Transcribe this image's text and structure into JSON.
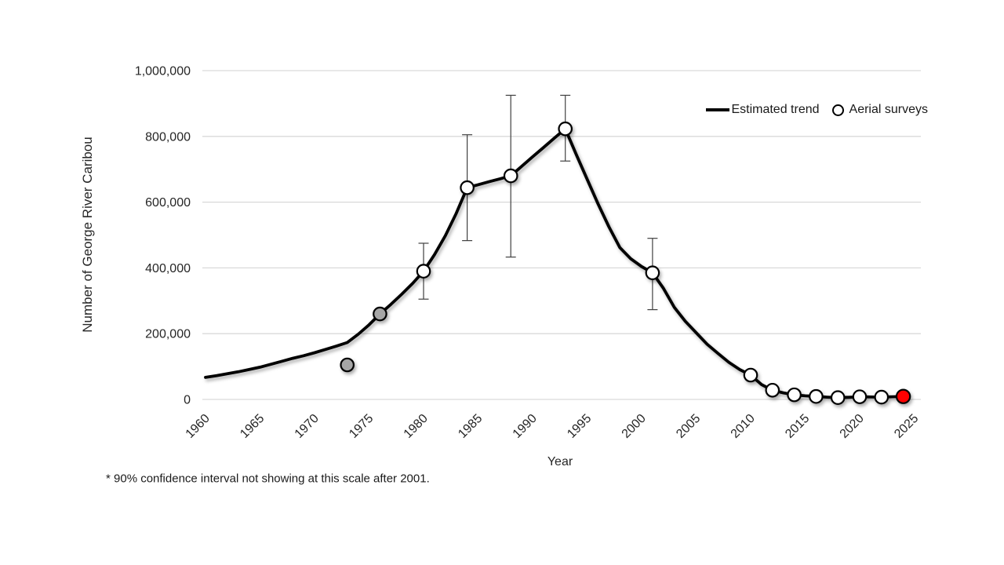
{
  "chart_data": {
    "type": "line",
    "title": "",
    "xlabel": "Year",
    "ylabel": "Number of George River Caribou",
    "xlim": [
      1960,
      2025
    ],
    "ylim": [
      0,
      1000000
    ],
    "grid": "horizontal",
    "x_ticks": [
      1960,
      1965,
      1970,
      1975,
      1980,
      1985,
      1990,
      1995,
      2000,
      2005,
      2010,
      2015,
      2020,
      2025
    ],
    "y_ticks": [
      {
        "value": 0,
        "label": "0"
      },
      {
        "value": 200000,
        "label": "200,000"
      },
      {
        "value": 400000,
        "label": "400,000"
      },
      {
        "value": 600000,
        "label": "600,000"
      },
      {
        "value": 800000,
        "label": "800,000"
      },
      {
        "value": 1000000,
        "label": "1,000,000"
      }
    ],
    "legend": {
      "position": "top-right",
      "entries": [
        {
          "label": "Estimated trend",
          "marker": "line"
        },
        {
          "label": "Aerial surveys",
          "marker": "open-circle"
        }
      ]
    },
    "series": [
      {
        "name": "Estimated trend",
        "type": "line",
        "color": "#000000",
        "x_start": 1960,
        "x_step": 1,
        "values": [
          67000,
          72000,
          78000,
          84000,
          91000,
          98000,
          107000,
          116000,
          125000,
          133000,
          142000,
          152000,
          162000,
          173000,
          198000,
          227000,
          260000,
          289000,
          320000,
          353000,
          390000,
          440000,
          498000,
          566000,
          644000,
          653000,
          662000,
          671000,
          680000,
          709000,
          738000,
          766000,
          795000,
          823000,
          745000,
          670000,
          595000,
          525000,
          462000,
          428000,
          404000,
          385000,
          338000,
          280000,
          238000,
          203000,
          168000,
          140000,
          113000,
          91000,
          74000,
          45000,
          28000,
          20000,
          14000,
          11000,
          9000,
          7000,
          5500,
          6500,
          8000,
          7500,
          7000,
          8000,
          9000
        ]
      },
      {
        "name": "Aerial surveys",
        "type": "scatter",
        "points": [
          {
            "year": 1973,
            "value": 105000,
            "marker": "gray",
            "ci_low": null,
            "ci_high": null
          },
          {
            "year": 1976,
            "value": 260000,
            "marker": "gray",
            "ci_low": null,
            "ci_high": null
          },
          {
            "year": 1980,
            "value": 390000,
            "marker": "open",
            "ci_low": 305000,
            "ci_high": 475000
          },
          {
            "year": 1984,
            "value": 644000,
            "marker": "open",
            "ci_low": 483000,
            "ci_high": 805000
          },
          {
            "year": 1988,
            "value": 680000,
            "marker": "open",
            "ci_low": 433000,
            "ci_high": 925000
          },
          {
            "year": 1993,
            "value": 823000,
            "marker": "open",
            "ci_low": 725000,
            "ci_high": 925000
          },
          {
            "year": 2001,
            "value": 385000,
            "marker": "open",
            "ci_low": 273000,
            "ci_high": 490000
          },
          {
            "year": 2010,
            "value": 74000,
            "marker": "open",
            "ci_low": null,
            "ci_high": null
          },
          {
            "year": 2012,
            "value": 28000,
            "marker": "open",
            "ci_low": null,
            "ci_high": null
          },
          {
            "year": 2014,
            "value": 14000,
            "marker": "open",
            "ci_low": null,
            "ci_high": null
          },
          {
            "year": 2016,
            "value": 9000,
            "marker": "open",
            "ci_low": null,
            "ci_high": null
          },
          {
            "year": 2018,
            "value": 5500,
            "marker": "open",
            "ci_low": null,
            "ci_high": null
          },
          {
            "year": 2020,
            "value": 8000,
            "marker": "open",
            "ci_low": null,
            "ci_high": null
          },
          {
            "year": 2022,
            "value": 7000,
            "marker": "open",
            "ci_low": null,
            "ci_high": null
          },
          {
            "year": 2024,
            "value": 9000,
            "marker": "red",
            "ci_low": null,
            "ci_high": null
          }
        ]
      }
    ],
    "footnote": "* 90% confidence interval not showing at this scale after 2001.",
    "colors": {
      "trend_line": "#000000",
      "marker_open_fill": "#FFFFFF",
      "marker_gray_fill": "#A6A6A6",
      "marker_red_fill": "#FF0000",
      "marker_stroke": "#000000",
      "gridline": "#D9D9D9",
      "error_bar": "#404040",
      "text": "#262626"
    }
  }
}
